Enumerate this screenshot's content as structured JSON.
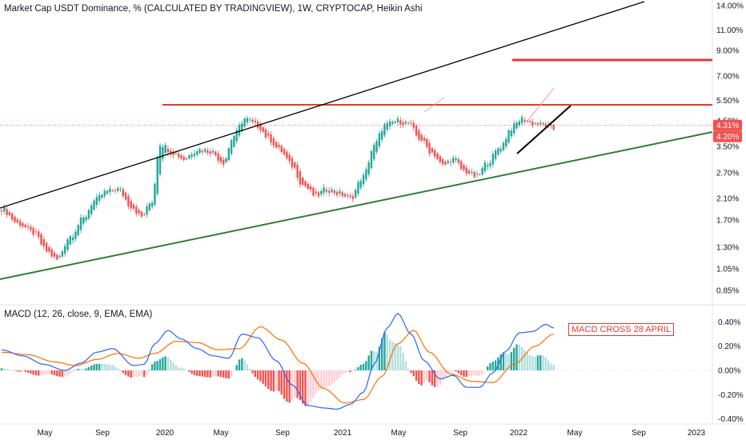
{
  "chart_title": "Market Cap USDT Dominance, % (CALCULATED BY TRADINGVIEW), 1W, CRYPTOCAP, Heikin Ashi",
  "macd_title": "MACD (12, 26, close, 9, EMA, EMA)",
  "annotation": "MACD CROSS 28 APRIL",
  "colors": {
    "bull": "#26a69a",
    "bear": "#ef5350",
    "resistance": "#e53935",
    "support": "#2e7d32",
    "channel": "#000000",
    "macd_line": "#2962ff",
    "signal_line": "#ff6d00",
    "hist_bull_strong": "#26a69a",
    "hist_bull_weak": "#b2dfdb",
    "hist_bear_strong": "#ef5350",
    "hist_bear_weak": "#ffcdd2"
  },
  "chart_data": [
    {
      "type": "candlestick",
      "style": "Heikin Ashi",
      "scale": "log",
      "ylim": [
        0.8,
        14.5
      ],
      "price_axis": [
        "14.00%",
        "11.00%",
        "9.00%",
        "7.00%",
        "5.50%",
        "4.50%",
        "3.50%",
        "2.70%",
        "2.10%",
        "1.70%",
        "1.30%",
        "1.05%",
        "0.85%"
      ],
      "price_tags": [
        {
          "label": "4.31%",
          "value": 4.31
        },
        {
          "label": "4.20%",
          "value": 4.2
        }
      ],
      "time_axis": [
        "May",
        "Sep",
        "2020",
        "May",
        "Sep",
        "2021",
        "May",
        "Sep",
        "2022",
        "May",
        "Sep",
        "2023"
      ],
      "close_anchors": [
        [
          0,
          1.9
        ],
        [
          6,
          1.65
        ],
        [
          12,
          1.5
        ],
        [
          17,
          1.25
        ],
        [
          21,
          1.15
        ],
        [
          26,
          1.45
        ],
        [
          31,
          1.72
        ],
        [
          35,
          2.05
        ],
        [
          40,
          2.25
        ],
        [
          44,
          2.3
        ],
        [
          49,
          1.95
        ],
        [
          53,
          1.75
        ],
        [
          57,
          2.05
        ],
        [
          60,
          3.6
        ],
        [
          65,
          3.3
        ],
        [
          69,
          3.1
        ],
        [
          74,
          3.4
        ],
        [
          79,
          3.35
        ],
        [
          84,
          3.0
        ],
        [
          88,
          3.9
        ],
        [
          92,
          4.6
        ],
        [
          97,
          4.3
        ],
        [
          101,
          3.8
        ],
        [
          105,
          3.4
        ],
        [
          110,
          2.9
        ],
        [
          114,
          2.4
        ],
        [
          119,
          2.15
        ],
        [
          123,
          2.3
        ],
        [
          128,
          2.2
        ],
        [
          132,
          2.1
        ],
        [
          137,
          2.6
        ],
        [
          141,
          3.5
        ],
        [
          145,
          4.3
        ],
        [
          150,
          4.5
        ],
        [
          154,
          4.4
        ],
        [
          158,
          3.8
        ],
        [
          163,
          3.3
        ],
        [
          167,
          2.9
        ],
        [
          171,
          3.1
        ],
        [
          175,
          2.75
        ],
        [
          180,
          2.6
        ],
        [
          184,
          3.0
        ],
        [
          189,
          3.5
        ],
        [
          193,
          4.2
        ],
        [
          197,
          4.6
        ],
        [
          201,
          4.4
        ],
        [
          206,
          4.3
        ],
        [
          209,
          4.15
        ]
      ],
      "overlays": [
        {
          "name": "resistance",
          "from": [
            "Sep 2019",
            5.4
          ],
          "to": [
            "2023",
            5.4
          ]
        },
        {
          "name": "target",
          "from": [
            "Apr 2022",
            8.1
          ],
          "to": [
            "2023",
            8.1
          ]
        },
        {
          "name": "support",
          "from": [
            "Feb 2019",
            0.93
          ],
          "to": [
            "2023",
            3.9
          ]
        },
        {
          "name": "channel-top",
          "from": [
            "Feb 2019",
            2.0
          ],
          "to": [
            "Sep 2022",
            14.5
          ]
        },
        {
          "name": "wedge-lower",
          "from": [
            "Jan 2022",
            3.1
          ],
          "to": [
            "Apr 2022",
            4.25
          ]
        },
        {
          "name": "wedge-upper",
          "from": [
            "Mar 2022",
            4.0
          ],
          "to": [
            "Apr 2022",
            5.1
          ]
        }
      ]
    },
    {
      "type": "macd",
      "ylim": [
        -0.42,
        0.5
      ],
      "y_axis": [
        "0.40%",
        "0.20%",
        "0.00%",
        "-0.20%",
        "-0.40%"
      ],
      "macd_anchors": [
        [
          0,
          0.17
        ],
        [
          8,
          0.12
        ],
        [
          16,
          0.05
        ],
        [
          24,
          0.0
        ],
        [
          30,
          0.06
        ],
        [
          36,
          0.15
        ],
        [
          42,
          0.18
        ],
        [
          50,
          0.04
        ],
        [
          54,
          0.05
        ],
        [
          58,
          0.22
        ],
        [
          63,
          0.33
        ],
        [
          68,
          0.26
        ],
        [
          74,
          0.18
        ],
        [
          80,
          0.12
        ],
        [
          86,
          0.1
        ],
        [
          91,
          0.3
        ],
        [
          97,
          0.27
        ],
        [
          104,
          0.08
        ],
        [
          110,
          -0.12
        ],
        [
          116,
          -0.29
        ],
        [
          122,
          -0.31
        ],
        [
          127,
          -0.32
        ],
        [
          132,
          -0.28
        ],
        [
          137,
          -0.18
        ],
        [
          141,
          0.05
        ],
        [
          146,
          0.35
        ],
        [
          150,
          0.47
        ],
        [
          155,
          0.3
        ],
        [
          160,
          0.08
        ],
        [
          166,
          -0.07
        ],
        [
          171,
          -0.04
        ],
        [
          176,
          -0.14
        ],
        [
          181,
          -0.14
        ],
        [
          186,
          -0.02
        ],
        [
          191,
          0.16
        ],
        [
          196,
          0.31
        ],
        [
          201,
          0.32
        ],
        [
          206,
          0.38
        ],
        [
          209,
          0.35
        ]
      ],
      "signal_anchors": [
        [
          0,
          0.15
        ],
        [
          10,
          0.13
        ],
        [
          20,
          0.07
        ],
        [
          28,
          0.04
        ],
        [
          36,
          0.09
        ],
        [
          44,
          0.14
        ],
        [
          52,
          0.1
        ],
        [
          58,
          0.14
        ],
        [
          66,
          0.24
        ],
        [
          74,
          0.23
        ],
        [
          82,
          0.17
        ],
        [
          90,
          0.18
        ],
        [
          98,
          0.36
        ],
        [
          106,
          0.25
        ],
        [
          114,
          0.06
        ],
        [
          122,
          -0.15
        ],
        [
          130,
          -0.27
        ],
        [
          137,
          -0.24
        ],
        [
          144,
          -0.05
        ],
        [
          150,
          0.22
        ],
        [
          156,
          0.33
        ],
        [
          162,
          0.15
        ],
        [
          170,
          -0.03
        ],
        [
          178,
          -0.09
        ],
        [
          186,
          -0.1
        ],
        [
          194,
          0.05
        ],
        [
          202,
          0.2
        ],
        [
          209,
          0.3
        ]
      ]
    }
  ]
}
